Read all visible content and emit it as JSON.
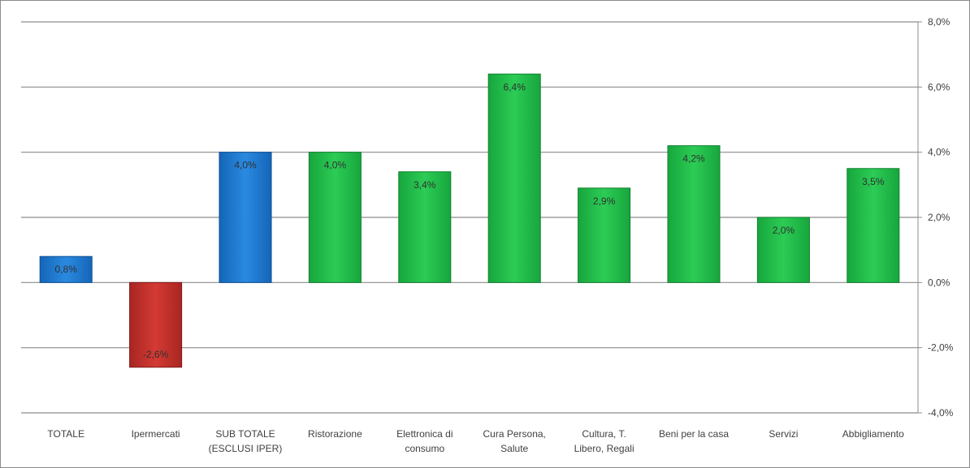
{
  "chart_data": {
    "type": "bar",
    "categories": [
      [
        "TOTALE"
      ],
      [
        "Ipermercati"
      ],
      [
        "SUB TOTALE",
        "(ESCLUSI IPER)"
      ],
      [
        "Ristorazione"
      ],
      [
        "Elettronica di",
        "consumo"
      ],
      [
        "Cura Persona,",
        "Salute"
      ],
      [
        "Cultura, T.",
        "Libero, Regali"
      ],
      [
        "Beni per la casa"
      ],
      [
        "Servizi"
      ],
      [
        "Abbigliamento"
      ]
    ],
    "values": [
      0.8,
      -2.6,
      4.0,
      4.0,
      3.4,
      6.4,
      2.9,
      4.2,
      2.0,
      3.5
    ],
    "data_labels": [
      "0,8%",
      "-2,6%",
      "4,0%",
      "4,0%",
      "3,4%",
      "6,4%",
      "2,9%",
      "4,2%",
      "2,0%",
      "3,5%"
    ],
    "bar_colors": [
      "#1f7fd3",
      "#c9302c",
      "#1f7fd3",
      "#1fbf4a",
      "#1fbf4a",
      "#1fbf4a",
      "#1fbf4a",
      "#1fbf4a",
      "#1fbf4a",
      "#1fbf4a"
    ],
    "ylim": [
      -4.0,
      8.0
    ],
    "yticks": [
      8.0,
      6.0,
      4.0,
      2.0,
      0.0,
      -2.0,
      -4.0
    ],
    "ytick_labels": [
      "8,0%",
      "6,0%",
      "4,0%",
      "2,0%",
      "0,0%",
      "-2,0%",
      "-4,0%"
    ],
    "y_axis_side": "right",
    "grid": true,
    "title": "",
    "xlabel": "",
    "ylabel": ""
  }
}
